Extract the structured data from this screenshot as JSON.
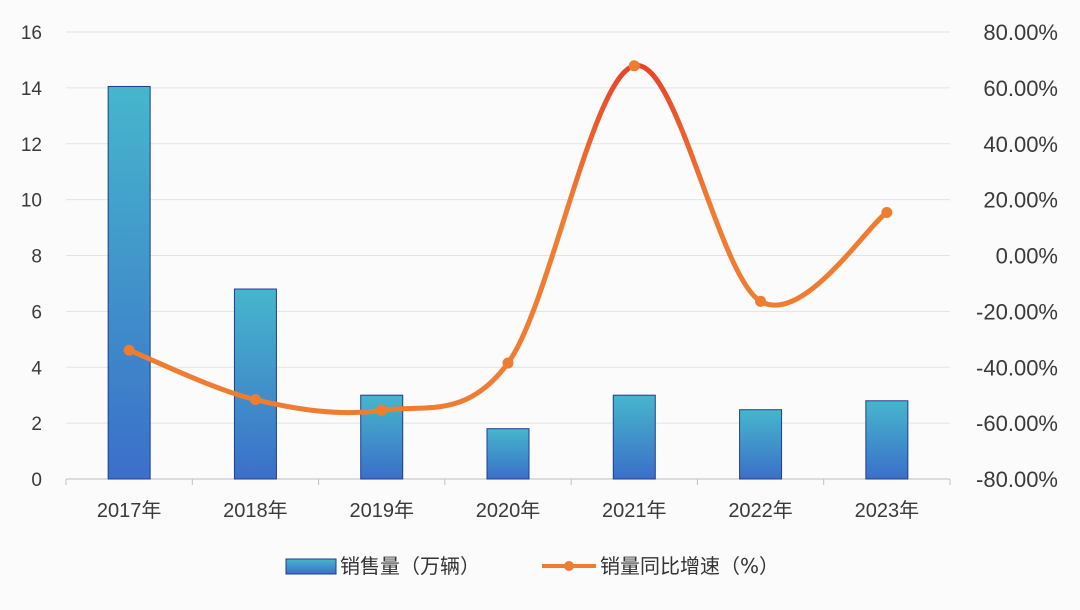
{
  "chart_data": {
    "type": "bar",
    "categories": [
      "2017年",
      "2018年",
      "2019年",
      "2020年",
      "2021年",
      "2022年",
      "2023年"
    ],
    "series": [
      {
        "name": "销售量（万辆）",
        "type": "bar",
        "axis": "left",
        "values": [
          14.05,
          6.8,
          3.0,
          1.8,
          3.0,
          2.48,
          2.8
        ],
        "color_top": "#46b6cc",
        "color_bottom": "#3b6fc9",
        "border": "#1f3e8c"
      },
      {
        "name": "销量同比增速（%）",
        "type": "line",
        "axis": "right",
        "smooth": true,
        "values": [
          -33.9,
          -51.6,
          -55.4,
          -38.5,
          67.9,
          -16.4,
          15.4
        ],
        "color": "#ee7d31",
        "peak_color": "#e8402a"
      }
    ],
    "left_axis": {
      "ylim": [
        0,
        16
      ],
      "ticks": [
        "0",
        "2",
        "4",
        "6",
        "8",
        "10",
        "12",
        "14",
        "16"
      ]
    },
    "right_axis": {
      "ylim": [
        -80,
        80
      ],
      "ticks": [
        "-80.00%",
        "-60.00%",
        "-40.00%",
        "-20.00%",
        "0.00%",
        "20.00%",
        "40.00%",
        "60.00%",
        "80.00%"
      ]
    },
    "grid": true,
    "legend_position": "bottom-center"
  }
}
